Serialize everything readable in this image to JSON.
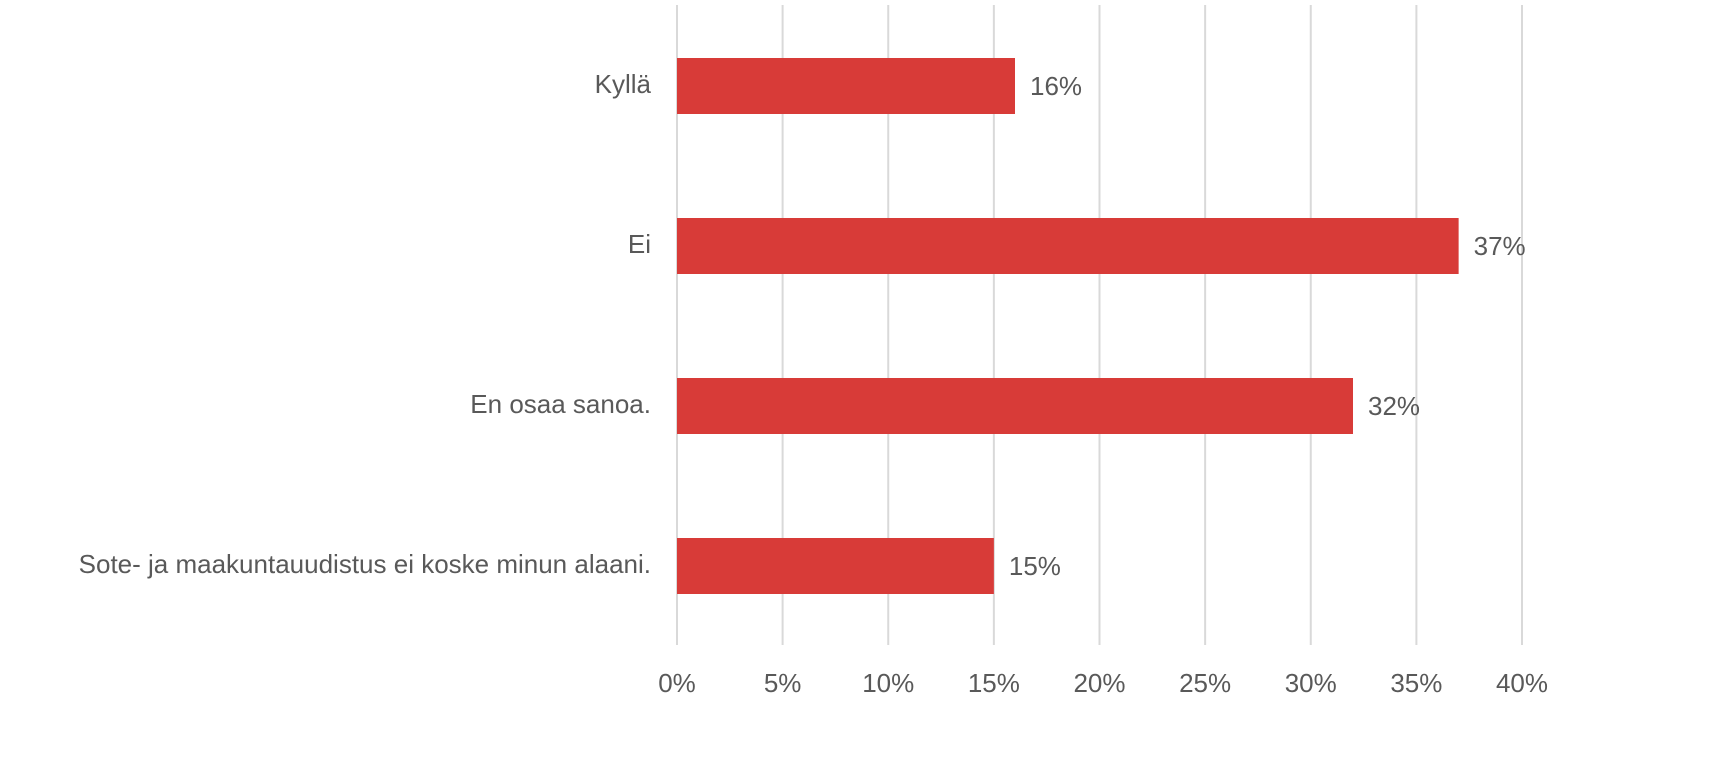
{
  "chart_data": {
    "type": "bar",
    "orientation": "horizontal",
    "categories": [
      "Kyllä",
      "Ei",
      "En osaa sanoa.",
      "Sote- ja maakuntauudistus ei koske minun alaani."
    ],
    "values": [
      16,
      37,
      32,
      15
    ],
    "value_labels": [
      "16%",
      "37%",
      "32%",
      "15%"
    ],
    "color": "#d83b38",
    "xlim": [
      0,
      40
    ],
    "xticks": [
      {
        "value": 0,
        "label": "0%"
      },
      {
        "value": 5,
        "label": "5%"
      },
      {
        "value": 10,
        "label": "10%"
      },
      {
        "value": 15,
        "label": "15%"
      },
      {
        "value": 20,
        "label": "20%"
      },
      {
        "value": 25,
        "label": "25%"
      },
      {
        "value": 30,
        "label": "30%"
      },
      {
        "value": 35,
        "label": "35%"
      },
      {
        "value": 40,
        "label": "40%"
      }
    ],
    "grid": true
  }
}
